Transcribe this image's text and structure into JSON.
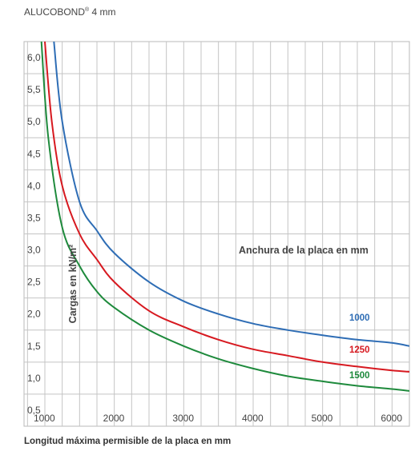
{
  "header": {
    "title": "ALUCOBOND",
    "title_mark": "®",
    "title_suffix": " 4 mm"
  },
  "chart_data": {
    "type": "line",
    "title": "ALUCOBOND® 4 mm",
    "xlabel": "Longitud máxima permisible de la placa en mm",
    "ylabel": "Cargas en kN/m²",
    "legend_title": "Anchura de la placa en mm",
    "legend_position": "right",
    "grid": true,
    "xlim": [
      700,
      6250
    ],
    "ylim": [
      0.25,
      6.25
    ],
    "x_ticks": [
      1000,
      2000,
      3000,
      4000,
      5000,
      6000
    ],
    "y_ticks": [
      0.5,
      1.0,
      1.5,
      2.0,
      2.5,
      3.0,
      3.5,
      4.0,
      4.5,
      5.0,
      5.5,
      6.0
    ],
    "y_tick_labels": [
      "0,5",
      "1,0",
      "1,5",
      "2,0",
      "2,5",
      "3,0",
      "3,5",
      "4,0",
      "4,5",
      "5,0",
      "5,5",
      "6,0"
    ],
    "series": [
      {
        "name": "1000",
        "color": "#2e6db5",
        "points": [
          [
            1130,
            6.25
          ],
          [
            1250,
            5.0
          ],
          [
            1500,
            3.75
          ],
          [
            1750,
            3.3
          ],
          [
            2000,
            2.95
          ],
          [
            2500,
            2.5
          ],
          [
            3000,
            2.2
          ],
          [
            3500,
            2.0
          ],
          [
            4000,
            1.85
          ],
          [
            4500,
            1.75
          ],
          [
            5000,
            1.67
          ],
          [
            5500,
            1.6
          ],
          [
            6000,
            1.55
          ],
          [
            6250,
            1.5
          ]
        ]
      },
      {
        "name": "1250",
        "color": "#d71920",
        "points": [
          [
            1000,
            6.25
          ],
          [
            1100,
            5.0
          ],
          [
            1250,
            4.0
          ],
          [
            1500,
            3.25
          ],
          [
            1750,
            2.85
          ],
          [
            2000,
            2.5
          ],
          [
            2500,
            2.05
          ],
          [
            3000,
            1.8
          ],
          [
            3500,
            1.6
          ],
          [
            4000,
            1.45
          ],
          [
            4500,
            1.35
          ],
          [
            5000,
            1.25
          ],
          [
            5500,
            1.18
          ],
          [
            6000,
            1.12
          ],
          [
            6250,
            1.1
          ]
        ]
      },
      {
        "name": "1500",
        "color": "#1e8a3c",
        "points": [
          [
            950,
            6.25
          ],
          [
            1050,
            4.75
          ],
          [
            1250,
            3.35
          ],
          [
            1500,
            2.75
          ],
          [
            1750,
            2.35
          ],
          [
            2000,
            2.1
          ],
          [
            2500,
            1.75
          ],
          [
            3000,
            1.5
          ],
          [
            3500,
            1.3
          ],
          [
            4000,
            1.15
          ],
          [
            4500,
            1.03
          ],
          [
            5000,
            0.95
          ],
          [
            5500,
            0.88
          ],
          [
            6000,
            0.83
          ],
          [
            6250,
            0.8
          ]
        ]
      }
    ]
  }
}
